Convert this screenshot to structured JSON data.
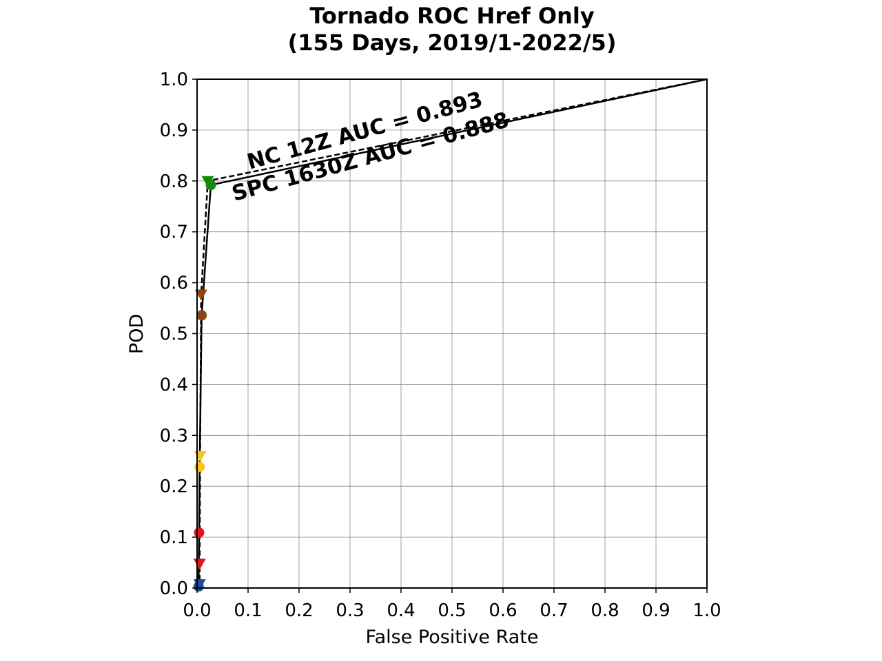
{
  "chart_data": {
    "type": "line",
    "title_line1": "Tornado ROC Href Only",
    "title_line2": "(155 Days, 2019/1-2022/5)",
    "xlabel": "False Positive Rate",
    "ylabel": "POD",
    "xlim": [
      0.0,
      1.0
    ],
    "ylim": [
      0.0,
      1.0
    ],
    "xticks": [
      "0.0",
      "0.1",
      "0.2",
      "0.3",
      "0.4",
      "0.5",
      "0.6",
      "0.7",
      "0.8",
      "0.9",
      "1.0"
    ],
    "yticks": [
      "0.0",
      "0.1",
      "0.2",
      "0.3",
      "0.4",
      "0.5",
      "0.6",
      "0.7",
      "0.8",
      "0.9",
      "1.0"
    ],
    "grid": true,
    "series": [
      {
        "name": "NC 12Z",
        "line_style": "dashed",
        "marker": "triangle-down",
        "auc_label": "NC 12Z AUC = 0.893",
        "points": [
          {
            "x": 0.0,
            "y": 0.0,
            "color": null
          },
          {
            "x": 0.005,
            "y": 0.008,
            "color": "#1f4e9c"
          },
          {
            "x": 0.005,
            "y": 0.048,
            "color": "#e8141c"
          },
          {
            "x": 0.006,
            "y": 0.26,
            "color": "#f5c518"
          },
          {
            "x": 0.008,
            "y": 0.577,
            "color": "#8b4513"
          },
          {
            "x": 0.021,
            "y": 0.8,
            "color": "#138a0c"
          },
          {
            "x": 1.0,
            "y": 1.0,
            "color": null
          }
        ]
      },
      {
        "name": "SPC 1630Z",
        "line_style": "solid",
        "marker": "circle",
        "auc_label": "SPC 1630Z AUC = 0.888",
        "points": [
          {
            "x": 0.0,
            "y": 0.0,
            "color": null
          },
          {
            "x": 0.003,
            "y": 0.003,
            "color": "#1f4e9c"
          },
          {
            "x": 0.004,
            "y": 0.109,
            "color": "#e8141c"
          },
          {
            "x": 0.005,
            "y": 0.238,
            "color": "#f5c518"
          },
          {
            "x": 0.009,
            "y": 0.536,
            "color": "#8b4513"
          },
          {
            "x": 0.027,
            "y": 0.792,
            "color": "#138a0c"
          },
          {
            "x": 1.0,
            "y": 1.0,
            "color": null
          }
        ]
      }
    ]
  }
}
